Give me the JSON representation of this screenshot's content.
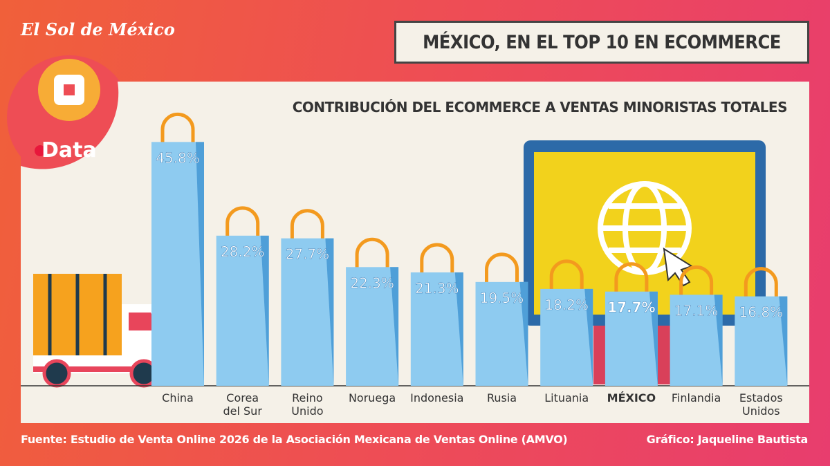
{
  "brand": "El Sol de México",
  "brand_section": "Data",
  "chart_data": {
    "type": "bar",
    "title": "MÉXICO, EN EL TOP 10 EN ECOMMERCE",
    "subtitle": "CONTRIBUCIÓN DEL ECOMMERCE A VENTAS MINORISTAS TOTALES",
    "categories": [
      "China",
      "Corea\ndel Sur",
      "Reino\nUnido",
      "Noruega",
      "Indonesia",
      "Rusia",
      "Lituania",
      "MÉXICO",
      "Finlandia",
      "Estados\nUnidos"
    ],
    "values": [
      45.8,
      28.2,
      27.7,
      22.3,
      21.3,
      19.5,
      18.2,
      17.7,
      17.1,
      16.8
    ],
    "value_labels": [
      "45.8%",
      "28.2%",
      "27.7%",
      "22.3%",
      "21.3%",
      "19.5%",
      "18.2%",
      "17.7%",
      "17.1%",
      "16.8%"
    ],
    "color": "#8ecbf0",
    "highlight_index": 7
  },
  "source": "Fuente: Estudio de Venta Online 2026 de la Asociación Mexicana de Ventas Online (AMVO)",
  "credit": "Gráfico: Jaqueline Bautista"
}
